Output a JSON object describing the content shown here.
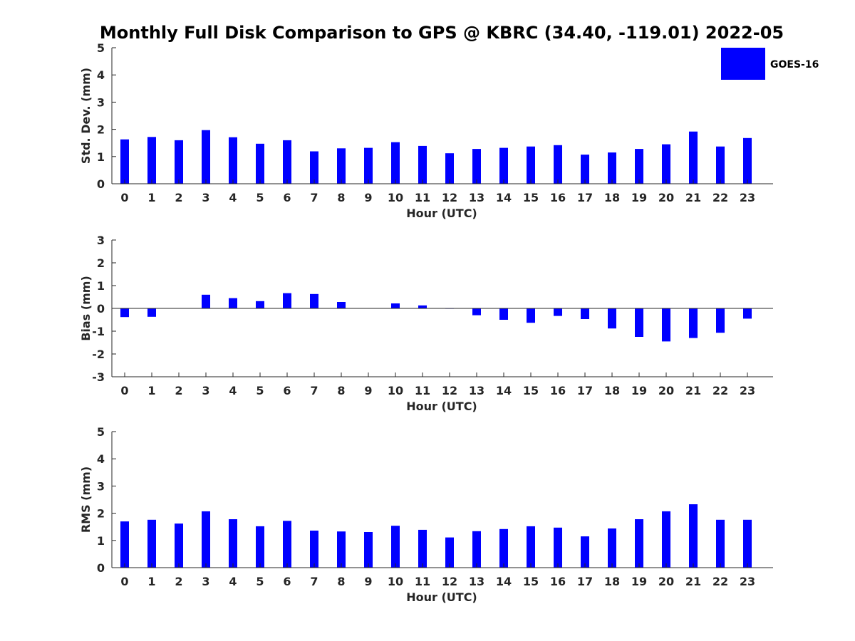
{
  "title": "Monthly Full Disk Comparison to GPS @ KBRC (34.40, -119.01) 2022-05",
  "legend": {
    "label": "GOES-16",
    "position": "top-right"
  },
  "colors": {
    "bar": "#0000ff",
    "axis": "#262626",
    "text": "#000000"
  },
  "chart_data": [
    {
      "type": "bar",
      "title": "Monthly Full Disk Comparison to GPS @ KBRC (34.40, -119.01) 2022-05",
      "xlabel": "Hour (UTC)",
      "ylabel": "Std. Dev. (mm)",
      "ylim": [
        0,
        5
      ],
      "yticks": [
        "0",
        "1",
        "2",
        "3",
        "4",
        "5"
      ],
      "categories": [
        "0",
        "1",
        "2",
        "3",
        "4",
        "5",
        "6",
        "7",
        "8",
        "9",
        "10",
        "11",
        "12",
        "13",
        "14",
        "15",
        "16",
        "17",
        "18",
        "19",
        "20",
        "21",
        "22",
        "23"
      ],
      "series": [
        {
          "name": "GOES-16",
          "values": [
            1.63,
            1.72,
            1.6,
            1.97,
            1.71,
            1.47,
            1.6,
            1.19,
            1.3,
            1.32,
            1.53,
            1.39,
            1.12,
            1.28,
            1.32,
            1.37,
            1.42,
            1.07,
            1.15,
            1.28,
            1.45,
            1.92,
            1.37,
            1.68
          ]
        }
      ]
    },
    {
      "type": "bar",
      "xlabel": "Hour (UTC)",
      "ylabel": "Bias (mm)",
      "ylim": [
        -3,
        3
      ],
      "yticks": [
        "-3",
        "-2",
        "-1",
        "0",
        "1",
        "2",
        "3"
      ],
      "categories": [
        "0",
        "1",
        "2",
        "3",
        "4",
        "5",
        "6",
        "7",
        "8",
        "9",
        "10",
        "11",
        "12",
        "13",
        "14",
        "15",
        "16",
        "17",
        "18",
        "19",
        "20",
        "21",
        "22",
        "23"
      ],
      "series": [
        {
          "name": "GOES-16",
          "values": [
            -0.38,
            -0.37,
            0.0,
            0.6,
            0.45,
            0.32,
            0.67,
            0.63,
            0.28,
            0.0,
            0.22,
            0.13,
            -0.02,
            -0.3,
            -0.5,
            -0.63,
            -0.33,
            -0.47,
            -0.88,
            -1.25,
            -1.45,
            -1.3,
            -1.07,
            -0.45
          ]
        }
      ]
    },
    {
      "type": "bar",
      "xlabel": "Hour (UTC)",
      "ylabel": "RMS (mm)",
      "ylim": [
        0,
        5
      ],
      "yticks": [
        "0",
        "1",
        "2",
        "3",
        "4",
        "5"
      ],
      "categories": [
        "0",
        "1",
        "2",
        "3",
        "4",
        "5",
        "6",
        "7",
        "8",
        "9",
        "10",
        "11",
        "12",
        "13",
        "14",
        "15",
        "16",
        "17",
        "18",
        "19",
        "20",
        "21",
        "22",
        "23"
      ],
      "series": [
        {
          "name": "GOES-16",
          "values": [
            1.7,
            1.76,
            1.62,
            2.07,
            1.78,
            1.52,
            1.72,
            1.36,
            1.33,
            1.31,
            1.54,
            1.39,
            1.11,
            1.34,
            1.42,
            1.52,
            1.47,
            1.15,
            1.44,
            1.78,
            2.07,
            2.33,
            1.76,
            1.76
          ]
        }
      ]
    }
  ]
}
